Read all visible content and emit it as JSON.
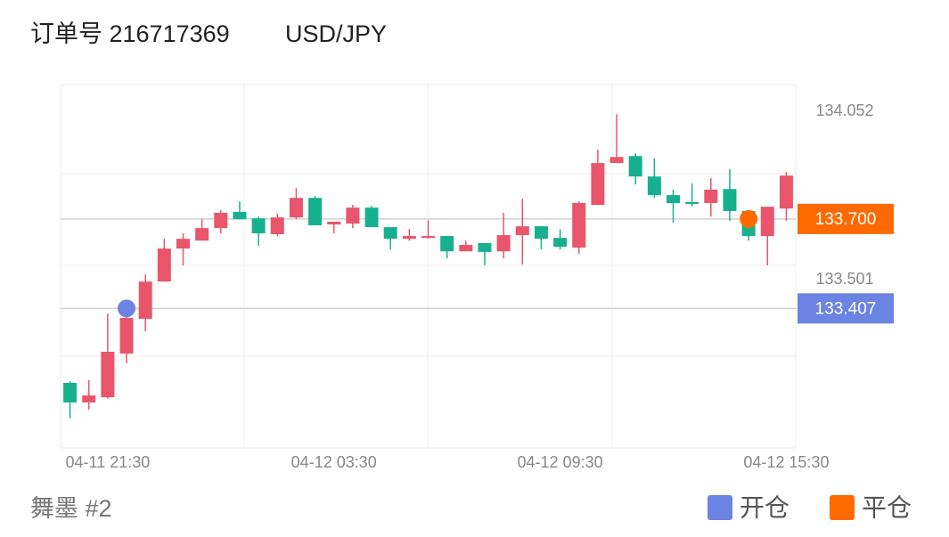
{
  "chart_data": {
    "type": "candlestick",
    "title": "订单号 216717369",
    "subtitle": "USD/JPY",
    "footer": "舞墨 #2",
    "up_color": "#e9566b",
    "down_color": "#17b08f",
    "categories": [
      null,
      null,
      "04-11 21:30",
      null,
      null,
      null,
      null,
      null,
      null,
      null,
      null,
      null,
      null,
      null,
      "04-12 03:30",
      null,
      null,
      null,
      null,
      null,
      null,
      null,
      null,
      null,
      null,
      null,
      "04-12 09:30",
      null,
      null,
      null,
      null,
      null,
      null,
      null,
      null,
      null,
      null,
      null,
      "04-12 15:30"
    ],
    "open": [
      133.163,
      133.099,
      133.116,
      133.259,
      133.373,
      133.495,
      133.603,
      133.629,
      133.67,
      133.723,
      133.702,
      133.65,
      133.705,
      133.769,
      133.682,
      133.685,
      133.737,
      133.673,
      133.635,
      133.638,
      133.644,
      133.594,
      133.621,
      133.594,
      133.647,
      133.676,
      133.638,
      133.606,
      133.746,
      133.883,
      133.906,
      133.839,
      133.778,
      133.755,
      133.752,
      133.798,
      133.726,
      133.644,
      133.734
    ],
    "high": [
      133.169,
      133.172,
      133.39,
      133.411,
      133.519,
      133.635,
      133.653,
      133.699,
      133.729,
      133.758,
      133.708,
      133.717,
      133.801,
      133.775,
      133.691,
      133.746,
      133.743,
      133.673,
      133.667,
      133.696,
      133.644,
      133.629,
      133.621,
      133.72,
      133.766,
      133.676,
      133.667,
      133.758,
      133.927,
      134.043,
      133.915,
      133.898,
      133.796,
      133.816,
      133.833,
      133.863,
      133.729,
      133.74,
      133.854
    ],
    "low": [
      133.047,
      133.075,
      133.111,
      133.227,
      133.332,
      133.495,
      133.548,
      133.629,
      133.653,
      133.699,
      133.612,
      133.644,
      133.699,
      133.679,
      133.653,
      133.67,
      133.673,
      133.6,
      133.629,
      133.635,
      133.571,
      133.594,
      133.548,
      133.571,
      133.551,
      133.6,
      133.6,
      133.586,
      133.746,
      133.883,
      133.813,
      133.769,
      133.688,
      133.74,
      133.708,
      133.694,
      133.629,
      133.548,
      133.694
    ],
    "close": [
      133.099,
      133.122,
      133.265,
      133.376,
      133.495,
      133.603,
      133.635,
      133.67,
      133.72,
      133.699,
      133.653,
      133.705,
      133.769,
      133.679,
      133.691,
      133.737,
      133.673,
      133.635,
      133.644,
      133.644,
      133.594,
      133.615,
      133.592,
      133.647,
      133.676,
      133.635,
      133.609,
      133.752,
      133.883,
      133.903,
      133.839,
      133.778,
      133.752,
      133.749,
      133.796,
      133.726,
      133.644,
      133.74,
      133.842
    ],
    "ylim": [
      132.95,
      134.14
    ],
    "yticks": [
      134.052,
      133.501
    ],
    "markers": [
      {
        "name": "开仓",
        "color": "#6b84e3",
        "candle": 3,
        "value": 133.407,
        "label": "133.407"
      },
      {
        "name": "平仓",
        "color": "#ff6a00",
        "candle": 36,
        "value": 133.7,
        "label": "133.700"
      }
    ]
  }
}
